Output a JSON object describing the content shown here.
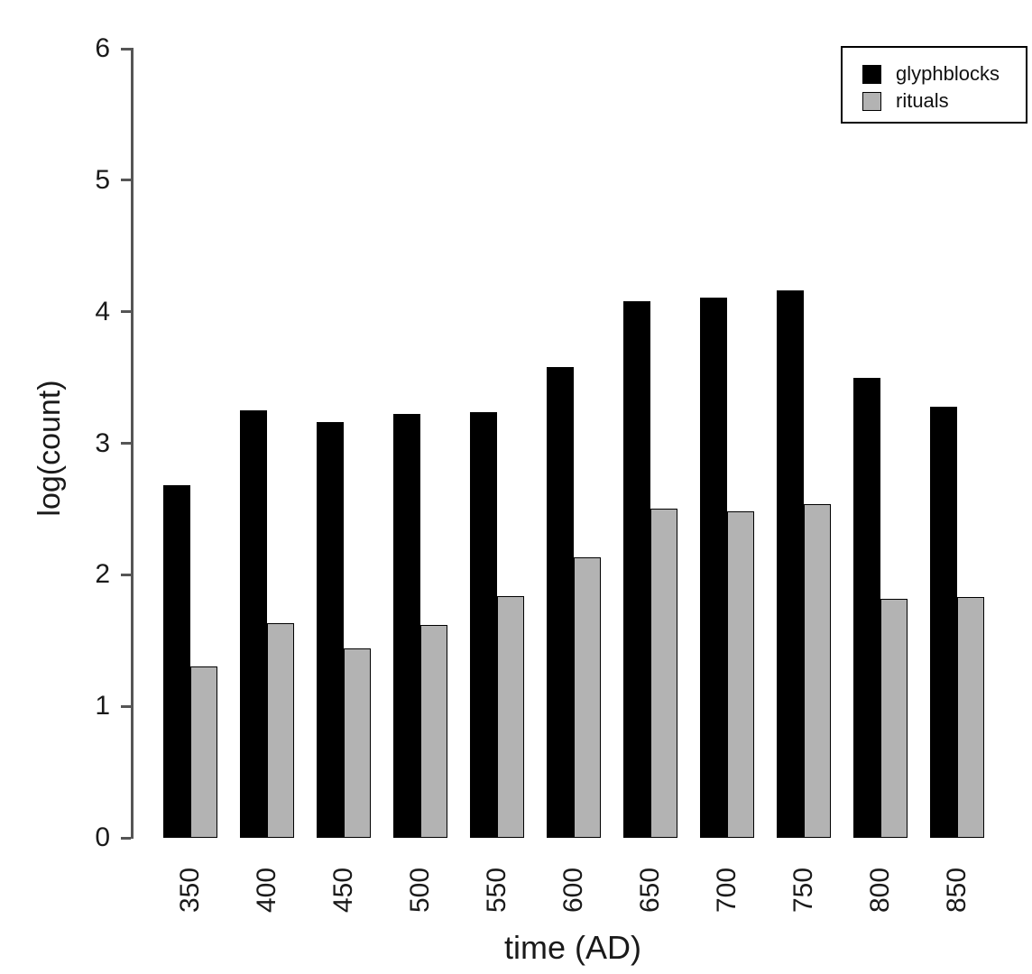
{
  "chart_data": {
    "type": "bar",
    "title": "",
    "xlabel": "time (AD)",
    "ylabel": "log(count)",
    "categories": [
      "350",
      "400",
      "450",
      "500",
      "550",
      "600",
      "650",
      "700",
      "750",
      "800",
      "850"
    ],
    "series": [
      {
        "name": "glyphblocks",
        "color": "#000000",
        "values": [
          2.68,
          3.25,
          3.16,
          3.22,
          3.24,
          3.58,
          4.08,
          4.11,
          4.16,
          3.5,
          3.28
        ]
      },
      {
        "name": "rituals",
        "color": "#b3b3b3",
        "values": [
          1.3,
          1.63,
          1.44,
          1.62,
          1.84,
          2.13,
          2.5,
          2.48,
          2.54,
          1.82,
          1.83
        ]
      }
    ],
    "ylim": [
      0,
      6
    ],
    "yticks": [
      0,
      1,
      2,
      3,
      4,
      5,
      6
    ],
    "grid": false,
    "legend_position": "top-right",
    "axis_color": "#555555"
  }
}
